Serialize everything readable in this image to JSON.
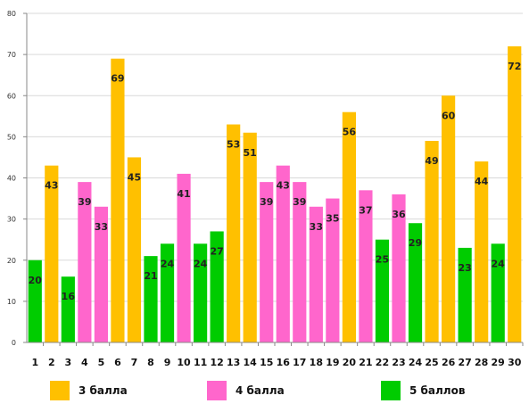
{
  "chart_data": {
    "type": "bar",
    "ylim": [
      0,
      80
    ],
    "yticks": [
      0,
      10,
      20,
      30,
      40,
      50,
      60,
      70,
      80
    ],
    "grid": true,
    "legend_position": "bottom",
    "categories": [
      "1",
      "2",
      "3",
      "4",
      "5",
      "6",
      "7",
      "8",
      "9",
      "10",
      "11",
      "12",
      "13",
      "14",
      "15",
      "16",
      "17",
      "18",
      "19",
      "20",
      "21",
      "22",
      "23",
      "24",
      "25",
      "26",
      "27",
      "28",
      "29",
      "30"
    ],
    "values": [
      20,
      43,
      16,
      39,
      33,
      69,
      45,
      21,
      24,
      41,
      24,
      27,
      53,
      51,
      39,
      43,
      39,
      33,
      35,
      56,
      37,
      25,
      36,
      29,
      49,
      60,
      23,
      44,
      24,
      72
    ],
    "groups": [
      2,
      0,
      2,
      1,
      1,
      0,
      0,
      2,
      2,
      1,
      2,
      2,
      0,
      0,
      1,
      1,
      1,
      1,
      1,
      0,
      1,
      2,
      1,
      2,
      0,
      0,
      2,
      0,
      2,
      0
    ],
    "series": [
      {
        "name": "3 балла",
        "color": "#ffc000"
      },
      {
        "name": "4 балла",
        "color": "#ff66cc"
      },
      {
        "name": "5 баллов",
        "color": "#00cc00"
      }
    ]
  }
}
